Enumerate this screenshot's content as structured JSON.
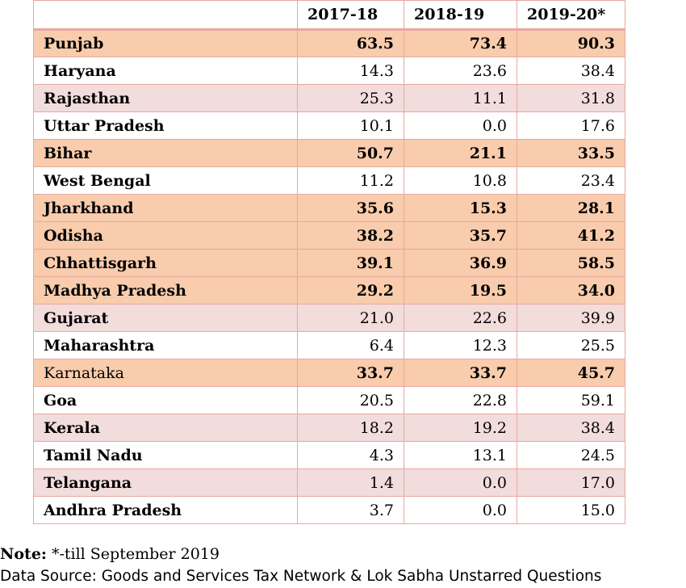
{
  "table": {
    "headers": [
      "",
      "2017-18",
      "2018-19",
      "2019-20*"
    ],
    "rows": [
      {
        "state": "Punjab",
        "v1": "63.5",
        "v2": "73.4",
        "v3": "90.3",
        "style": "orange"
      },
      {
        "state": "Haryana",
        "v1": "14.3",
        "v2": "23.6",
        "v3": "38.4",
        "style": "white"
      },
      {
        "state": "Rajasthan",
        "v1": "25.3",
        "v2": "11.1",
        "v3": "31.8",
        "style": "pink"
      },
      {
        "state": "Uttar Pradesh",
        "v1": "10.1",
        "v2": "0.0",
        "v3": "17.6",
        "style": "white"
      },
      {
        "state": "Bihar",
        "v1": "50.7",
        "v2": "21.1",
        "v3": "33.5",
        "style": "orange"
      },
      {
        "state": "West Bengal",
        "v1": "11.2",
        "v2": "10.8",
        "v3": "23.4",
        "style": "white"
      },
      {
        "state": "Jharkhand",
        "v1": "35.6",
        "v2": "15.3",
        "v3": "28.1",
        "style": "orange"
      },
      {
        "state": "Odisha",
        "v1": "38.2",
        "v2": "35.7",
        "v3": "41.2",
        "style": "orange"
      },
      {
        "state": "Chhattisgarh",
        "v1": "39.1",
        "v2": "36.9",
        "v3": "58.5",
        "style": "orange"
      },
      {
        "state": "Madhya Pradesh",
        "v1": "29.2",
        "v2": "19.5",
        "v3": "34.0",
        "style": "orange"
      },
      {
        "state": "Gujarat",
        "v1": "21.0",
        "v2": "22.6",
        "v3": "39.9",
        "style": "pink"
      },
      {
        "state": "Maharashtra",
        "v1": "6.4",
        "v2": "12.3",
        "v3": "25.5",
        "style": "white"
      },
      {
        "state": "Karnataka",
        "v1": "33.7",
        "v2": "33.7",
        "v3": "45.7",
        "style": "orange plain"
      },
      {
        "state": "Goa",
        "v1": "20.5",
        "v2": "22.8",
        "v3": "59.1",
        "style": "white"
      },
      {
        "state": "Kerala",
        "v1": "18.2",
        "v2": "19.2",
        "v3": "38.4",
        "style": "pink"
      },
      {
        "state": "Tamil Nadu",
        "v1": "4.3",
        "v2": "13.1",
        "v3": "24.5",
        "style": "white"
      },
      {
        "state": "Telangana",
        "v1": "1.4",
        "v2": "0.0",
        "v3": "17.0",
        "style": "pink"
      },
      {
        "state": "Andhra Pradesh",
        "v1": "3.7",
        "v2": "0.0",
        "v3": "15.0",
        "style": "white"
      }
    ]
  },
  "notes": {
    "note_label": "Note:",
    "note_text": " *-till September 2019",
    "source": "Data Source: Goods and Services Tax Network & Lok Sabha Unstarred Questions"
  },
  "colors": {
    "orange_row": "#f8ccac",
    "pink_row": "#f2dcdc",
    "border": "#e8a8a0"
  }
}
